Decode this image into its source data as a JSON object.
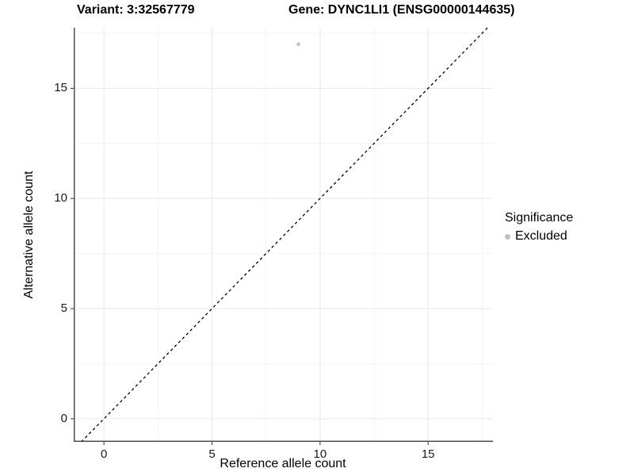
{
  "header": {
    "variant_label": "Variant: 3:32567779",
    "gene_label": "Gene: DYNC1LI1 (ENSG00000144635)"
  },
  "legend": {
    "title": "Significance",
    "items": [
      {
        "label": "Excluded",
        "color": "#bfbfbf"
      }
    ]
  },
  "chart_data": {
    "type": "scatter",
    "title_left": "Variant: 3:32567779",
    "title_right": "Gene: DYNC1LI1 (ENSG00000144635)",
    "xlabel": "Reference allele count",
    "ylabel": "Alternative allele count",
    "xlim": [
      -1.4,
      18.0
    ],
    "ylim": [
      -1.05,
      17.75
    ],
    "x_ticks": [
      0,
      5,
      10,
      15
    ],
    "y_ticks": [
      0,
      5,
      10,
      15
    ],
    "x_minor_ticks": [
      2.5,
      7.5,
      12.5,
      17.5
    ],
    "y_minor_ticks": [
      2.5,
      7.5,
      12.5,
      17.5
    ],
    "grid": true,
    "legend_position": "right",
    "legend_title": "Significance",
    "series": [
      {
        "name": "Excluded",
        "color": "#c4c4c4",
        "points": [
          {
            "x": 9,
            "y": 17
          }
        ]
      }
    ],
    "reference_line": {
      "kind": "identity",
      "equation": "y = x",
      "style": "dashed",
      "color": "#000000"
    },
    "colors": {
      "background": "#ffffff",
      "grid_major": "#e8e8e8",
      "grid_minor": "#f3f3f3",
      "axis_line": "#4d4d4d",
      "tick_mark": "#333333",
      "point": "#c4c4c4"
    }
  }
}
